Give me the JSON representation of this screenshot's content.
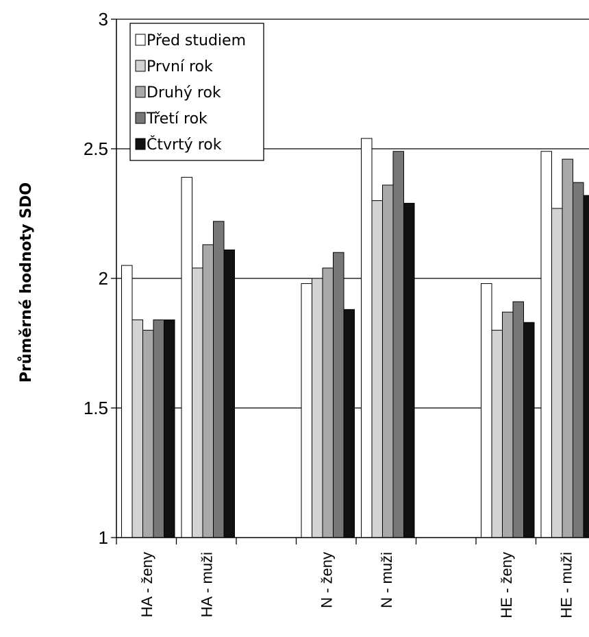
{
  "chart_data": {
    "type": "bar",
    "ylabel": "Průměrné hodnoty SDO",
    "ylim": [
      1,
      3
    ],
    "yticks": [
      "1",
      "1.5",
      "2",
      "2.5",
      "3"
    ],
    "grid": "horizontal",
    "legend_position": "top-left",
    "categories": [
      "HA - ženy",
      "HA - muži",
      "",
      "N - ženy",
      "N - muži",
      "",
      "HE - ženy",
      "HE - muži"
    ],
    "series": [
      {
        "name": "Před studiem",
        "color": "#ffffff",
        "values": [
          2.05,
          2.39,
          null,
          1.98,
          2.54,
          null,
          1.98,
          2.49
        ]
      },
      {
        "name": "První rok",
        "color": "#d3d3d3",
        "values": [
          1.84,
          2.04,
          null,
          2.0,
          2.3,
          null,
          1.8,
          2.27
        ]
      },
      {
        "name": "Druhý rok",
        "color": "#a9a9a9",
        "values": [
          1.8,
          2.13,
          null,
          2.04,
          2.36,
          null,
          1.87,
          2.46
        ]
      },
      {
        "name": "Třetí rok",
        "color": "#777777",
        "values": [
          1.84,
          2.22,
          null,
          2.1,
          2.49,
          null,
          1.91,
          2.37
        ]
      },
      {
        "name": "Čtvrtý rok",
        "color": "#111111",
        "values": [
          1.84,
          2.11,
          null,
          1.88,
          2.29,
          null,
          1.83,
          2.32
        ]
      }
    ]
  }
}
